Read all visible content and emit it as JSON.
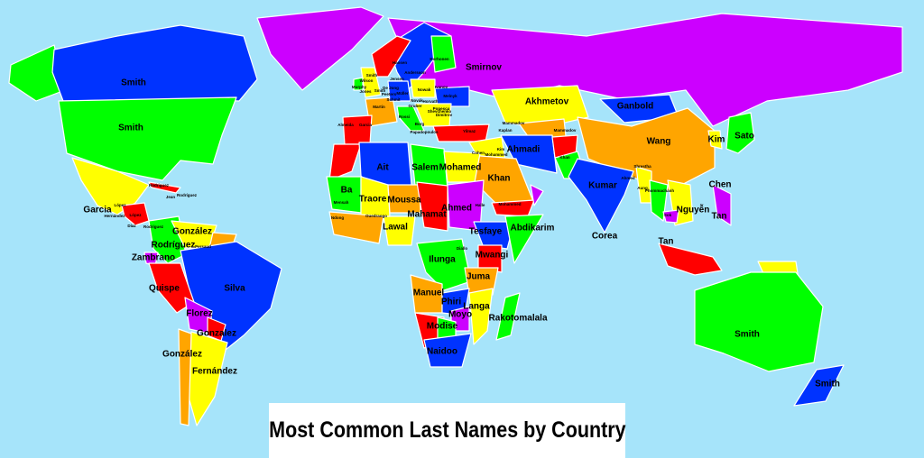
{
  "title": "Most Common Last Names by Country",
  "colors": {
    "ocean": "#a6e4fa",
    "magenta": "#cc00ff",
    "blue": "#0033ff",
    "green": "#00ff00",
    "yellow": "#ffff00",
    "orange": "#ffa500",
    "red": "#ff0000"
  },
  "labels": [
    "Smith",
    "Smith",
    "Garcia",
    "Smirnov",
    "Akhmetov",
    "Ganbold",
    "Wang",
    "Kim",
    "Sato",
    "Chen",
    "Kumar",
    "Ahmadi",
    "Khan",
    "Mohamed",
    "Salem",
    "Ait",
    "Ba",
    "Traore",
    "Moussa",
    "Mahamat",
    "Ahmed",
    "Lawal",
    "Tesfaye",
    "Abdikarim",
    "Mwangi",
    "Ilunga",
    "Juma",
    "Manuel",
    "Phiri",
    "Langa",
    "Moyo",
    "Modise",
    "Naidoo",
    "Rakotomalala",
    "Nguyễn",
    "Tan",
    "Corea",
    "Tan",
    "Smith",
    "Smith",
    "González",
    "Rodríguez",
    "Zambrano",
    "Quispe",
    "Silva",
    "Florez",
    "Gonzalez",
    "González",
    "Fernández"
  ],
  "small_labels": [
    "Smith",
    "Wilson",
    "Murphy",
    "Jones",
    "Smith",
    "Hansen",
    "Andersson",
    "Korhonen",
    "Jensen",
    "De Jong",
    "Peeters",
    "Müller",
    "Schmit",
    "Nowak",
    "Ivanov",
    "Melnyk",
    "Novák",
    "Horvath",
    "Gruber",
    "Popescu",
    "Martin",
    "Rossi",
    "Borg",
    "Dimitrov",
    "Papadopoulos",
    "Yilmaz",
    "Garcia",
    "Almeida",
    "Rodriguez",
    "Jean",
    "Rodríguez",
    "López",
    "Hernández",
    "López",
    "Díaz",
    "Rodríguez",
    "Persaud",
    "Mammadov",
    "Mammadov",
    "Khan",
    "Cohen",
    "Mohammed",
    "Halle",
    "Mohammed",
    "Shrestha",
    "Ahmed",
    "Aung",
    "Phommachanh",
    "Sok",
    "Kim",
    "Diallo",
    "Ouedraogo",
    "Mensah",
    "Ndong",
    "Shevchenko",
    "Kaplan"
  ]
}
